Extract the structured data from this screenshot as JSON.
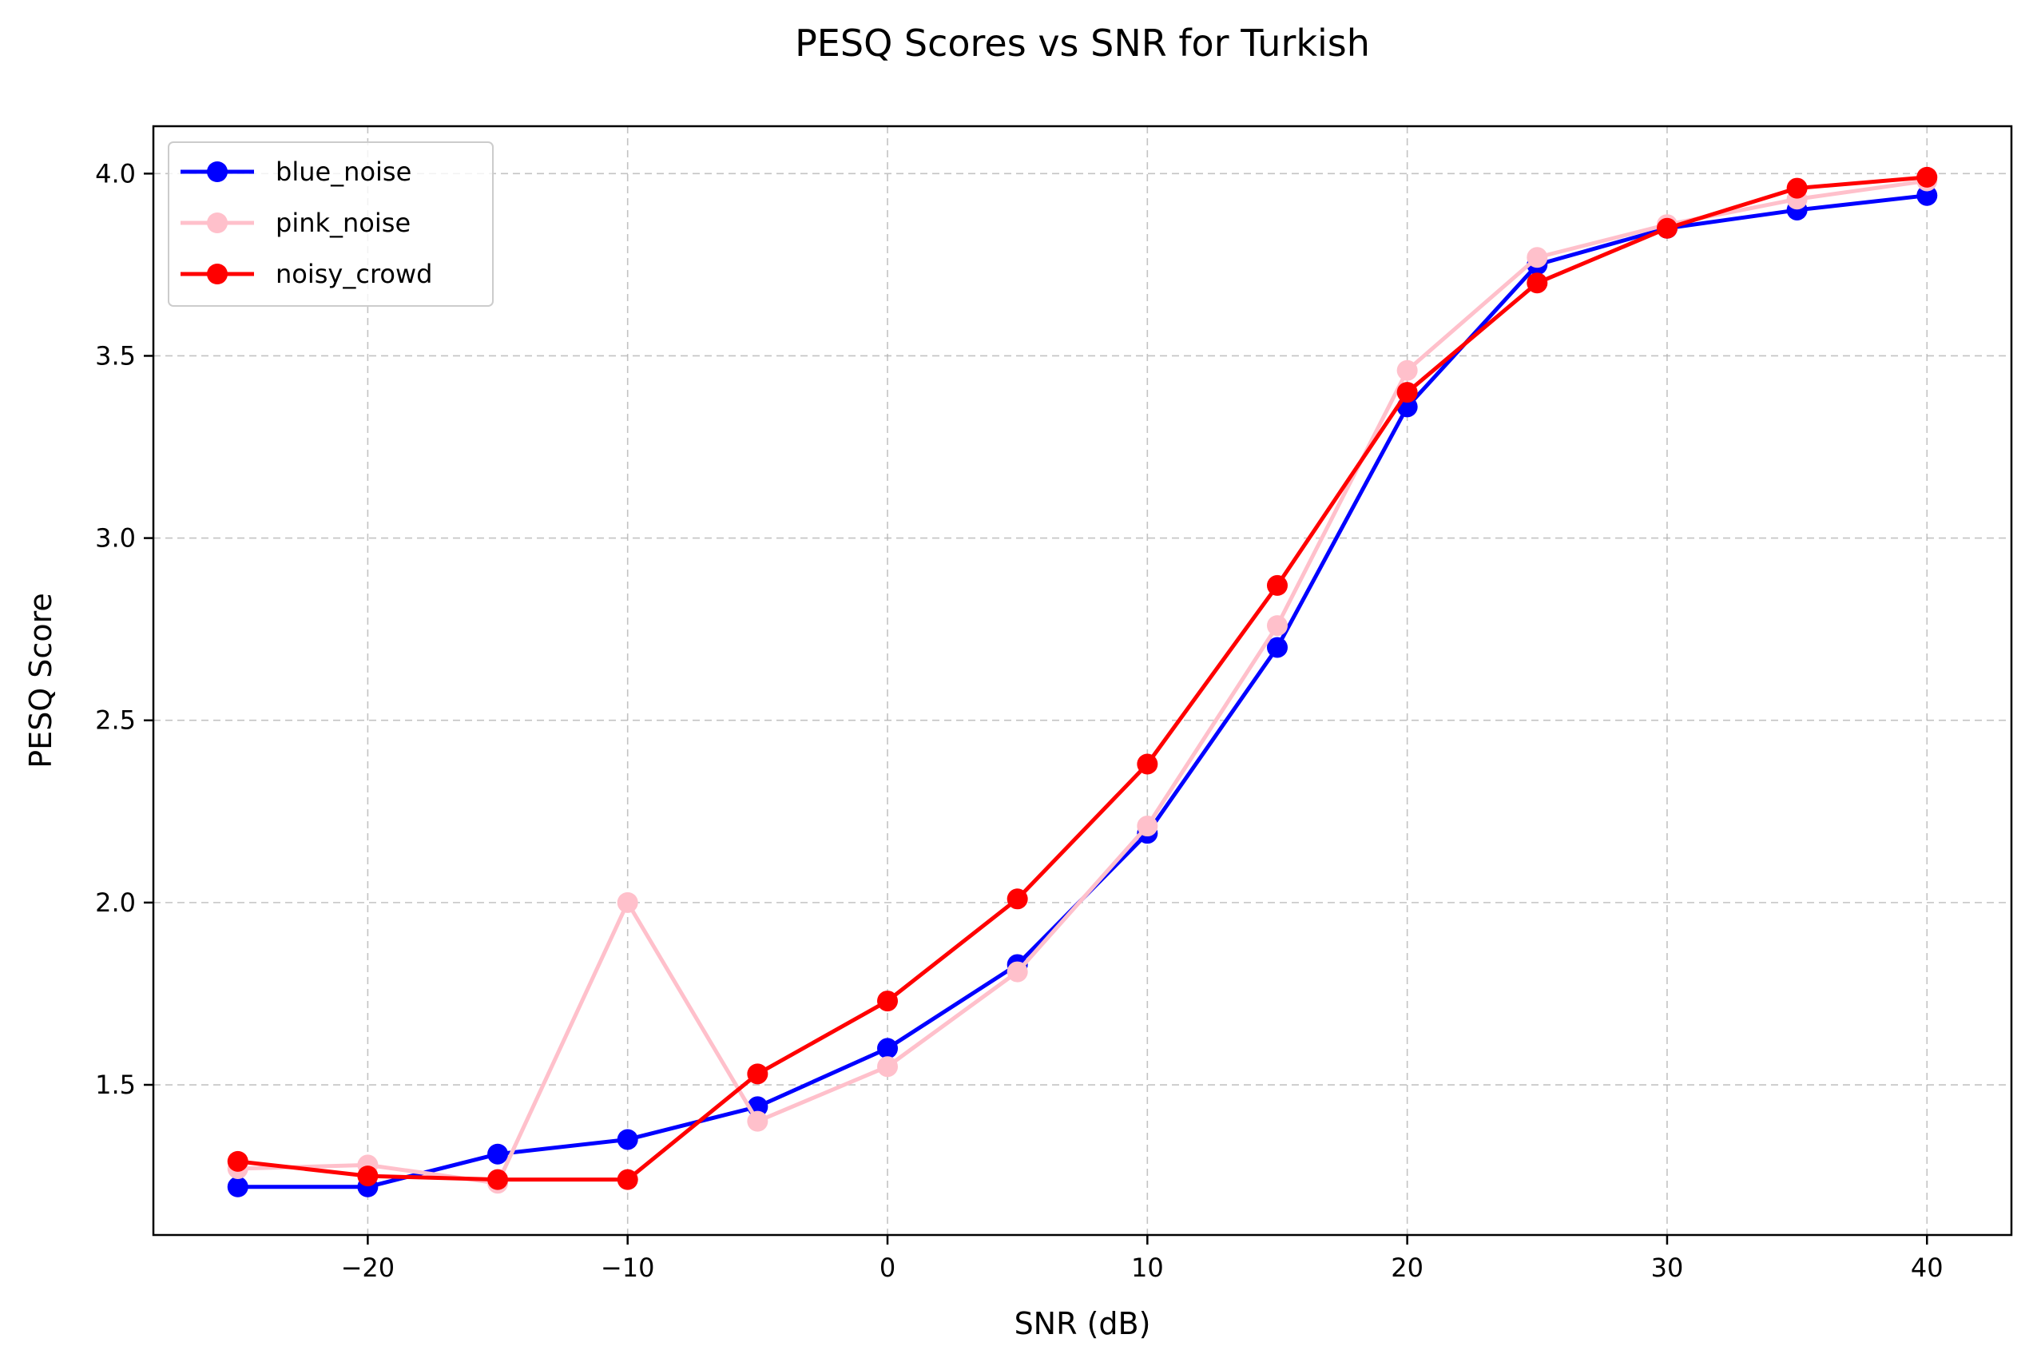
{
  "chart_data": {
    "type": "line",
    "title": "PESQ Scores vs SNR for Turkish",
    "xlabel": "SNR (dB)",
    "ylabel": "PESQ Score",
    "xlim": [
      -28.25,
      43.25
    ],
    "ylim": [
      1.088,
      4.13
    ],
    "x_ticks": [
      -20,
      -10,
      0,
      10,
      20,
      30,
      40
    ],
    "x_tick_labels": [
      "−20",
      "−10",
      "0",
      "10",
      "20",
      "30",
      "40"
    ],
    "y_ticks": [
      1.5,
      2.0,
      2.5,
      3.0,
      3.5,
      4.0
    ],
    "y_tick_labels": [
      "1.5",
      "2.0",
      "2.5",
      "3.0",
      "3.5",
      "4.0"
    ],
    "grid": true,
    "legend_position": "top-left",
    "x": [
      -25,
      -20,
      -15,
      -10,
      -5,
      0,
      5,
      10,
      15,
      20,
      25,
      30,
      35,
      40
    ],
    "series": [
      {
        "name": "blue_noise",
        "color": "#0000ff",
        "values": [
          1.22,
          1.22,
          1.31,
          1.35,
          1.44,
          1.6,
          1.83,
          2.19,
          2.7,
          3.36,
          3.75,
          3.85,
          3.9,
          3.94
        ]
      },
      {
        "name": "pink_noise",
        "color": "#ffc0cb",
        "values": [
          1.27,
          1.28,
          1.23,
          2.0,
          1.4,
          1.55,
          1.81,
          2.21,
          2.76,
          3.46,
          3.77,
          3.86,
          3.93,
          3.98
        ]
      },
      {
        "name": "noisy_crowd",
        "color": "#ff0000",
        "values": [
          1.29,
          1.25,
          1.24,
          1.24,
          1.53,
          1.73,
          2.01,
          2.38,
          2.87,
          3.4,
          3.7,
          3.85,
          3.96,
          3.99
        ]
      }
    ]
  }
}
